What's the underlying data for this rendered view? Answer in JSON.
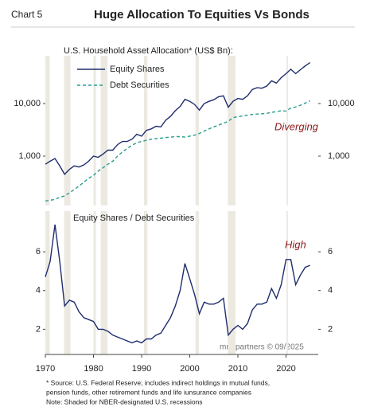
{
  "chart_label": "Chart 5",
  "title": "Huge Allocation To Equities Vs Bonds",
  "notes": [
    "* Source: U.S. Federal Reserve; includes indirect holdings in mutual funds,",
    "pension funds, other retirement funds and life iunsurance companies",
    "Note: Shaded for NBER-designated U.S. recessions"
  ],
  "watermark": "mrb partners © 09/2025",
  "recessions": [
    [
      1969.9,
      1970.9
    ],
    [
      1973.9,
      1975.2
    ],
    [
      1980.0,
      1980.5
    ],
    [
      1981.5,
      1982.9
    ],
    [
      1990.5,
      1991.2
    ],
    [
      2001.2,
      2001.9
    ],
    [
      2007.9,
      2009.5
    ],
    [
      2020.1,
      2020.4
    ]
  ],
  "chart_data": [
    {
      "type": "line",
      "subtitle": "U.S. Household Asset Allocation* (US$ Bn):",
      "log_scale": true,
      "xlim": [
        1970,
        2026.7
      ],
      "ylim": [
        115,
        81000
      ],
      "yticks": [
        {
          "value": 1000,
          "label": "1,000"
        },
        {
          "value": 10000,
          "label": "10,000"
        }
      ],
      "annotations": [
        "Diverging"
      ],
      "x": [
        1970,
        1971,
        1972,
        1973,
        1974,
        1975,
        1976,
        1977,
        1978,
        1979,
        1980,
        1981,
        1982,
        1983,
        1984,
        1985,
        1986,
        1987,
        1988,
        1989,
        1990,
        1991,
        1992,
        1993,
        1994,
        1995,
        1996,
        1997,
        1998,
        1999,
        2000,
        2001,
        2002,
        2003,
        2004,
        2005,
        2006,
        2007,
        2008,
        2009,
        2010,
        2011,
        2012,
        2013,
        2014,
        2015,
        2016,
        2017,
        2018,
        2019,
        2020,
        2021,
        2022,
        2023,
        2024,
        2025
      ],
      "series": [
        {
          "name": "Equity Shares",
          "color": "#1f2d6e",
          "dash": false,
          "values": [
            700,
            800,
            900,
            650,
            450,
            560,
            650,
            620,
            680,
            800,
            1000,
            950,
            1100,
            1300,
            1300,
            1650,
            1900,
            1900,
            2100,
            2600,
            2400,
            3100,
            3300,
            3700,
            3600,
            4800,
            5700,
            7300,
            8800,
            12000,
            11000,
            9600,
            7500,
            10000,
            11000,
            11800,
            13500,
            14000,
            8500,
            11000,
            12500,
            12000,
            14000,
            18500,
            20000,
            19500,
            21500,
            27000,
            24500,
            31000,
            37000,
            45000,
            37000,
            44000,
            52000,
            60000
          ]
        },
        {
          "name": "Debt Securities",
          "color": "#2a9d8f",
          "dash": true,
          "values": [
            140,
            145,
            150,
            165,
            175,
            200,
            230,
            270,
            320,
            380,
            430,
            520,
            600,
            700,
            800,
            1000,
            1200,
            1400,
            1600,
            1800,
            1900,
            2000,
            2100,
            2150,
            2200,
            2250,
            2300,
            2350,
            2350,
            2300,
            2400,
            2500,
            2700,
            3000,
            3300,
            3600,
            3900,
            4200,
            4600,
            5400,
            5600,
            5800,
            6000,
            6200,
            6300,
            6400,
            6500,
            6800,
            7000,
            7300,
            7200,
            8200,
            8600,
            9300,
            10200,
            11300
          ]
        }
      ]
    },
    {
      "type": "line",
      "subtitle": "Equity Shares / Debt Securities",
      "log_scale": false,
      "xlim": [
        1970,
        2026.7
      ],
      "ylim": [
        0.7,
        8.1
      ],
      "yticks": [
        2,
        4,
        6
      ],
      "xticks": [
        1970,
        1980,
        1990,
        2000,
        2010,
        2020
      ],
      "annotations": [
        "High"
      ],
      "x": [
        1970,
        1971,
        1972,
        1973,
        1974,
        1975,
        1976,
        1977,
        1978,
        1979,
        1980,
        1981,
        1982,
        1983,
        1984,
        1985,
        1986,
        1987,
        1988,
        1989,
        1990,
        1991,
        1992,
        1993,
        1994,
        1995,
        1996,
        1997,
        1998,
        1999,
        2000,
        2001,
        2002,
        2003,
        2004,
        2005,
        2006,
        2007,
        2008,
        2009,
        2010,
        2011,
        2012,
        2013,
        2014,
        2015,
        2016,
        2017,
        2018,
        2019,
        2020,
        2021,
        2022,
        2023,
        2024,
        2025
      ],
      "series": [
        {
          "name": "Equity Shares / Debt Securities",
          "color": "#1f2d6e",
          "dash": false,
          "values": [
            4.7,
            5.5,
            7.4,
            5.5,
            3.2,
            3.5,
            3.4,
            2.9,
            2.6,
            2.5,
            2.4,
            2.0,
            2.0,
            1.9,
            1.7,
            1.6,
            1.5,
            1.4,
            1.3,
            1.4,
            1.3,
            1.5,
            1.5,
            1.7,
            1.8,
            2.2,
            2.6,
            3.2,
            4.0,
            5.4,
            4.6,
            3.8,
            2.8,
            3.4,
            3.3,
            3.3,
            3.4,
            3.6,
            1.7,
            2.0,
            2.2,
            2.0,
            2.3,
            3.0,
            3.3,
            3.3,
            3.4,
            4.1,
            3.6,
            4.3,
            5.6,
            5.6,
            4.3,
            4.8,
            5.2,
            5.3
          ]
        }
      ]
    }
  ]
}
